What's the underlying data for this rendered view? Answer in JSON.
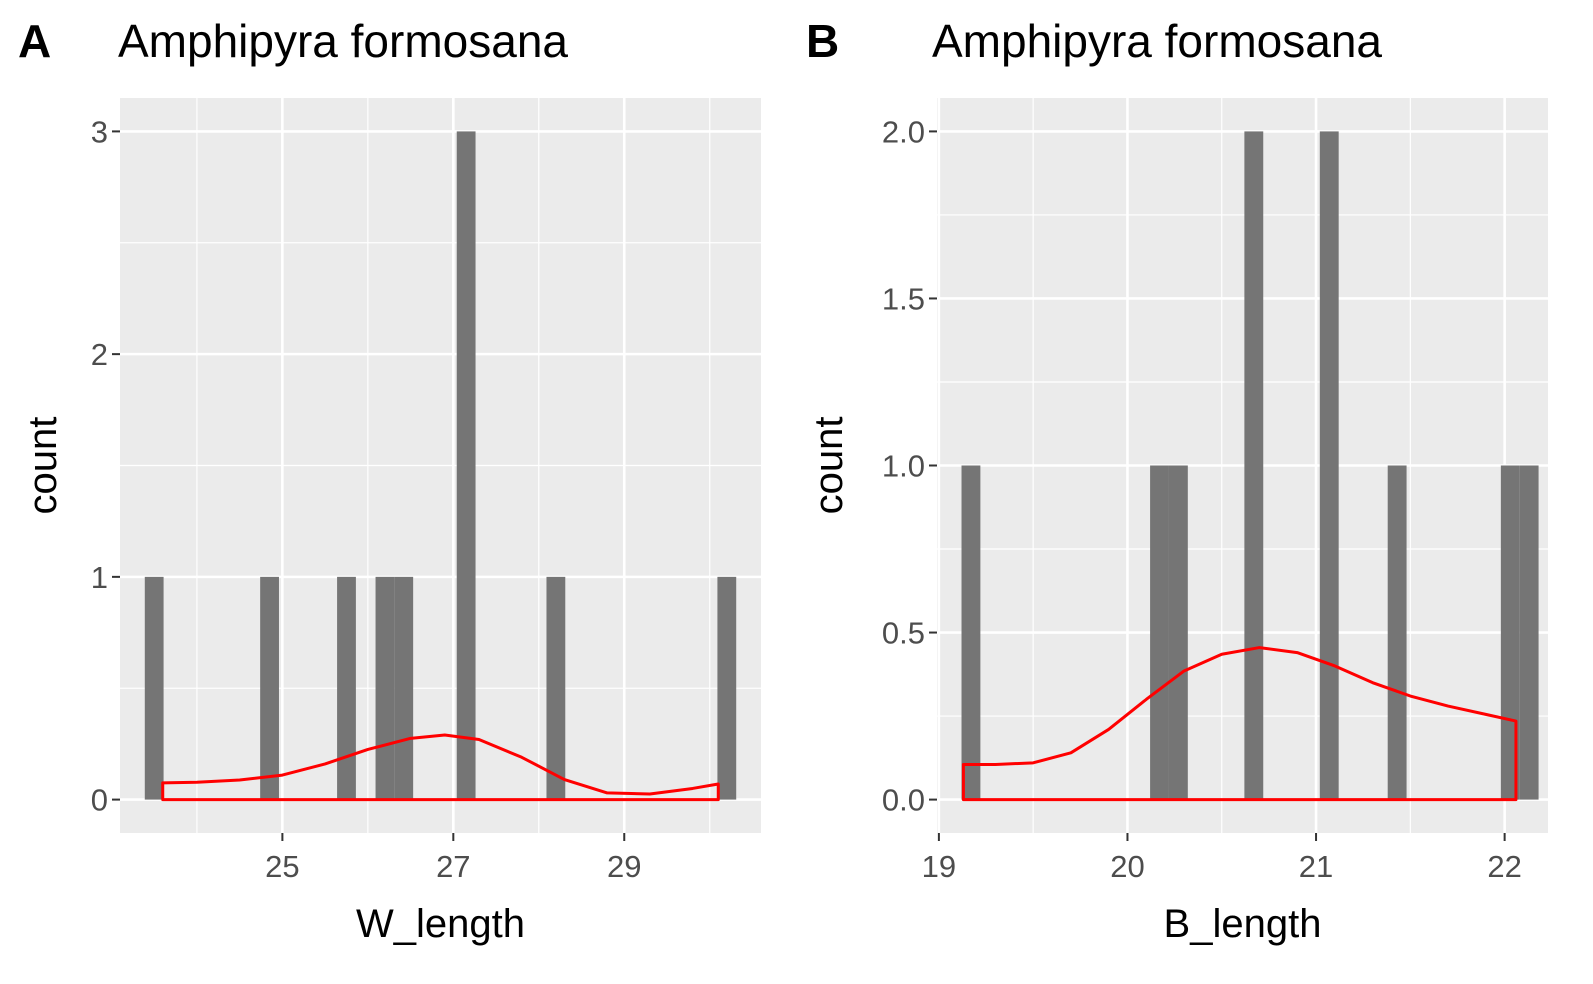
{
  "panels": [
    {
      "tag": "A",
      "title": "Amphipyra formosana",
      "chart_data": {
        "type": "bar",
        "subtype": "histogram_with_density",
        "xlabel": "W_length",
        "ylabel": "count",
        "xlim": [
          23.1,
          30.6
        ],
        "ylim": [
          -0.15,
          3.15
        ],
        "xticks": [
          25,
          27,
          29
        ],
        "xtick_labels": [
          "25",
          "27",
          "29"
        ],
        "yticks": [
          0,
          1,
          2,
          3
        ],
        "ytick_labels": [
          "0",
          "1",
          "2",
          "3"
        ],
        "x_minor_gridlines": [
          24,
          26,
          28,
          30
        ],
        "y_minor_gridlines": [
          0.5,
          1.5,
          2.5
        ],
        "bar_width": 0.22,
        "bars": [
          {
            "x": 23.5,
            "count": 1
          },
          {
            "x": 24.85,
            "count": 1
          },
          {
            "x": 25.75,
            "count": 1
          },
          {
            "x": 26.2,
            "count": 1
          },
          {
            "x": 26.42,
            "count": 1
          },
          {
            "x": 27.15,
            "count": 3
          },
          {
            "x": 28.2,
            "count": 1
          },
          {
            "x": 30.2,
            "count": 1
          }
        ],
        "density": {
          "x": [
            23.6,
            24.0,
            24.5,
            25.0,
            25.5,
            26.0,
            26.5,
            26.9,
            27.3,
            27.8,
            28.3,
            28.8,
            29.3,
            29.8,
            30.1
          ],
          "y": [
            0.075,
            0.078,
            0.088,
            0.11,
            0.16,
            0.225,
            0.275,
            0.29,
            0.27,
            0.19,
            0.09,
            0.03,
            0.025,
            0.05,
            0.07
          ]
        },
        "colors": {
          "bar": "#757575",
          "density": "#ff0000",
          "panel_bg": "#ebebeb",
          "grid": "#ffffff",
          "tick_label": "#4d4d4d"
        }
      }
    },
    {
      "tag": "B",
      "title": "Amphipyra formosana",
      "chart_data": {
        "type": "bar",
        "subtype": "histogram_with_density",
        "xlabel": "B_length",
        "ylabel": "count",
        "xlim": [
          18.99,
          22.23
        ],
        "ylim": [
          -0.1,
          2.1
        ],
        "xticks": [
          19,
          20,
          21,
          22
        ],
        "xtick_labels": [
          "19",
          "20",
          "21",
          "22"
        ],
        "yticks": [
          0.0,
          0.5,
          1.0,
          1.5,
          2.0
        ],
        "ytick_labels": [
          "0.0",
          "0.5",
          "1.0",
          "1.5",
          "2.0"
        ],
        "x_minor_gridlines": [
          19.5,
          20.5,
          21.5
        ],
        "y_minor_gridlines": [
          0.25,
          0.75,
          1.25,
          1.75
        ],
        "bar_width": 0.1,
        "bars": [
          {
            "x": 19.17,
            "count": 1
          },
          {
            "x": 20.17,
            "count": 1
          },
          {
            "x": 20.27,
            "count": 1
          },
          {
            "x": 20.67,
            "count": 2
          },
          {
            "x": 21.07,
            "count": 2
          },
          {
            "x": 21.43,
            "count": 1
          },
          {
            "x": 22.03,
            "count": 1
          },
          {
            "x": 22.13,
            "count": 1
          }
        ],
        "density": {
          "x": [
            19.13,
            19.3,
            19.5,
            19.7,
            19.9,
            20.1,
            20.3,
            20.5,
            20.7,
            20.9,
            21.1,
            21.3,
            21.5,
            21.7,
            21.9,
            22.06
          ],
          "y": [
            0.105,
            0.105,
            0.11,
            0.14,
            0.21,
            0.3,
            0.385,
            0.435,
            0.455,
            0.44,
            0.4,
            0.35,
            0.31,
            0.28,
            0.255,
            0.235
          ]
        },
        "colors": {
          "bar": "#757575",
          "density": "#ff0000",
          "panel_bg": "#ebebeb",
          "grid": "#ffffff",
          "tick_label": "#4d4d4d"
        }
      }
    }
  ]
}
